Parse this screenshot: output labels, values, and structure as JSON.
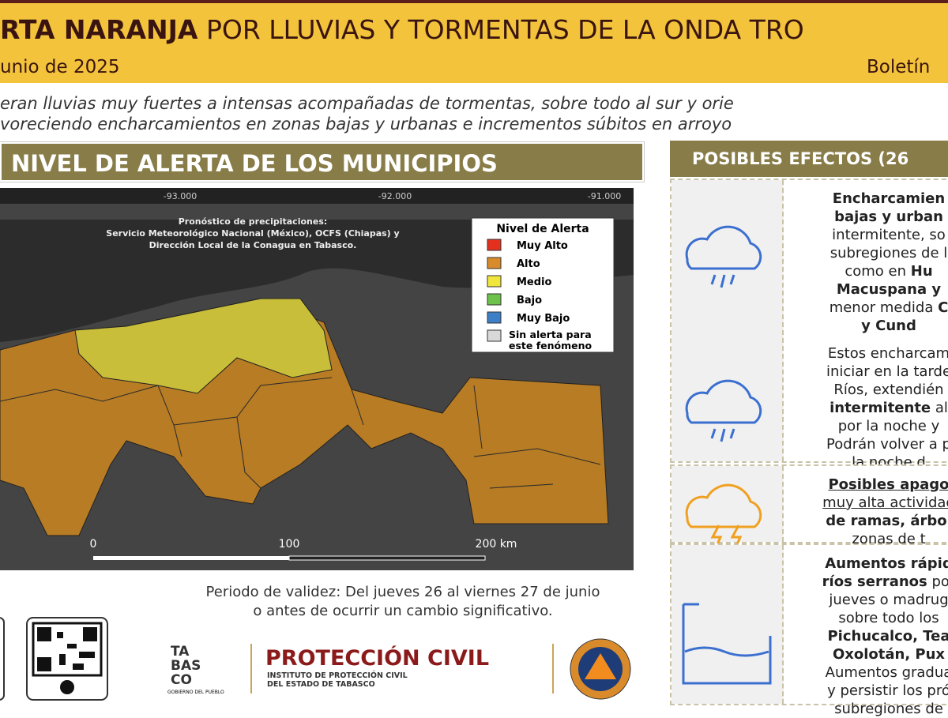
{
  "header": {
    "title_bold": "RTA NARANJA",
    "title_rest": "POR LLUVIAS Y TORMENTAS DE LA ONDA TRO",
    "date": "unio de 2025",
    "bulletin": "Boletín"
  },
  "intro": [
    "eran lluvias muy fuertes a intensas acompañadas de tormentas, sobre todo al sur y orie",
    "voreciendo encharcamientos en zonas bajas y urbanas e incrementos súbitos en arroyo"
  ],
  "map": {
    "title": "NIVEL DE ALERTA DE LOS MUNICIPIOS",
    "longitudes": [
      "-93.000",
      "-92.000",
      "-91.000"
    ],
    "source": [
      "Pronóstico de precipitaciones:",
      "Servicio Meteorológico Nacional (México), OCFS (Chiapas) y",
      "Dirección Local de la Conagua en Tabasco."
    ],
    "legend": {
      "title": "Nivel de Alerta",
      "items": [
        {
          "label": "Muy Alto",
          "color": "#e3301f"
        },
        {
          "label": "Alto",
          "color": "#d98b2b"
        },
        {
          "label": "Medio",
          "color": "#f1e63c"
        },
        {
          "label": "Bajo",
          "color": "#6cc24a"
        },
        {
          "label": "Muy Bajo",
          "color": "#3d7fc6"
        },
        {
          "label": [
            "Sin alerta para",
            "este fenómeno"
          ],
          "color": "#d9d9d9"
        }
      ]
    },
    "scale": [
      "0",
      "100",
      "200 km"
    ]
  },
  "validity": [
    "Periodo de validez: Del jueves 26 al viernes 27 de junio",
    "o antes de ocurrir un cambio significativo."
  ],
  "logos": {
    "state": [
      "TA",
      "BAS",
      "CO"
    ],
    "state_motto": "GOBIERNO DEL PUEBLO",
    "agency": "PROTECCIÓN CIVIL",
    "agency_sub": [
      "INSTITUTO DE PROTECCIÓN CIVIL",
      "DEL ESTADO DE TABASCO"
    ]
  },
  "effects": {
    "title": "POSIBLES EFECTOS (26",
    "cards": [
      {
        "lines": [
          [
            {
              "text": "Encharcamien",
              "bold": true
            }
          ],
          [
            {
              "text": "bajas y urban",
              "bold": true
            }
          ],
          [
            {
              "text": "intermitente, so"
            }
          ],
          [
            {
              "text": "subregiones de l"
            }
          ],
          [
            {
              "text": "como en "
            },
            {
              "text": "Hu",
              "bold": true
            }
          ],
          [
            {
              "text": "Macuspana y",
              "bold": true
            }
          ],
          [
            {
              "text": "menor medida "
            },
            {
              "text": "C",
              "bold": true
            }
          ],
          [
            {
              "text": "y Cund",
              "bold": true
            }
          ]
        ]
      },
      {
        "lines": [
          [
            {
              "text": "Estos encharcam"
            }
          ],
          [
            {
              "text": "iniciar en la tarde"
            }
          ],
          [
            {
              "text": "Ríos, extendién"
            }
          ],
          [
            {
              "text": "intermitente",
              "bold": true
            },
            {
              "text": " al"
            }
          ],
          [
            {
              "text": "por la noche y"
            }
          ],
          [
            {
              "text": "Podrán volver a p"
            }
          ],
          [
            {
              "text": "la noche d"
            }
          ]
        ]
      },
      {
        "lines": [
          [
            {
              "text": "Posibles apago",
              "bold": true,
              "underline": true
            }
          ],
          [
            {
              "text": "muy alta actividad",
              "underline": true
            }
          ],
          [
            {
              "text": "de ramas, árbol",
              "bold": true
            }
          ],
          [
            {
              "text": "zonas de t"
            }
          ]
        ]
      },
      {
        "lines": [
          [
            {
              "text": "Aumentos rápid",
              "bold": true
            }
          ],
          [
            {
              "text": "ríos serranos",
              "bold": true
            },
            {
              "text": " por"
            }
          ],
          [
            {
              "text": "jueves o madrug"
            }
          ],
          [
            {
              "text": "sobre todo los"
            }
          ],
          [
            {
              "text": "Pichucalco, Tea",
              "bold": true
            }
          ],
          [
            {
              "text": "Oxolotán, Pux",
              "bold": true
            }
          ],
          [
            {
              "text": "Aumentos gradua"
            }
          ],
          [
            {
              "text": "y persistir los pró"
            }
          ],
          [
            {
              "text": "subregiones de"
            }
          ]
        ]
      }
    ]
  }
}
